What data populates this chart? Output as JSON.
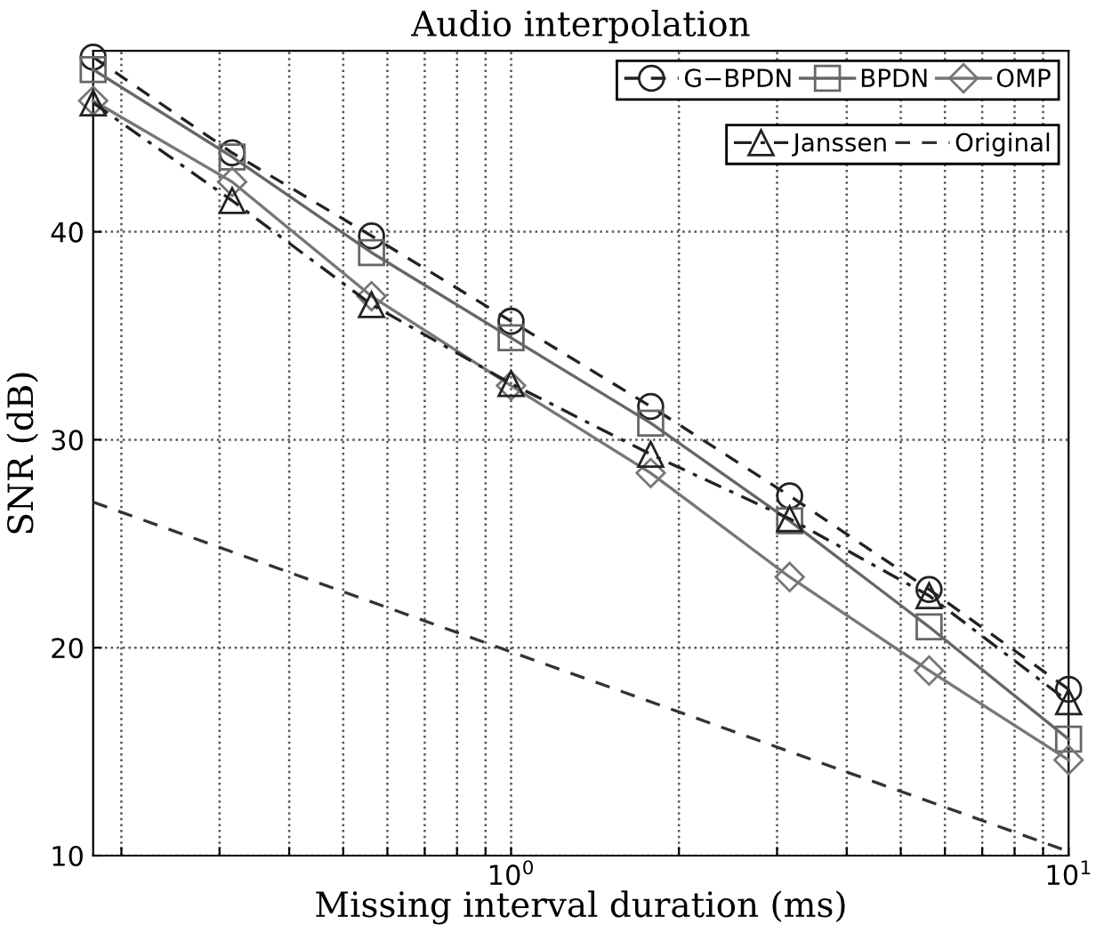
{
  "chart_data": {
    "type": "line",
    "title": "Audio interpolation",
    "xlabel": "Missing interval duration (ms)",
    "ylabel": "SNR (dB)",
    "x": [
      0.178,
      0.316,
      0.562,
      1,
      1.78,
      3.16,
      5.62,
      10
    ],
    "series": [
      {
        "name": "G−BPDN",
        "color": "#222222",
        "marker": "circle",
        "line_style": "dashed",
        "values": [
          48.4,
          43.8,
          39.8,
          35.7,
          31.6,
          27.3,
          22.8,
          18.0
        ]
      },
      {
        "name": "BPDN",
        "color": "#666666",
        "marker": "square",
        "line_style": "solid",
        "values": [
          47.8,
          43.6,
          39.0,
          34.9,
          30.8,
          26.1,
          21.0,
          15.6
        ]
      },
      {
        "name": "OMP",
        "color": "#777777",
        "marker": "diamond",
        "line_style": "solid",
        "values": [
          46.3,
          42.4,
          36.9,
          32.6,
          28.4,
          23.4,
          18.9,
          14.6
        ]
      },
      {
        "name": "Janssen",
        "color": "#222222",
        "marker": "triangle",
        "line_style": "dashdot",
        "values": [
          46.2,
          41.5,
          36.5,
          32.7,
          29.3,
          26.2,
          22.5,
          17.4
        ]
      },
      {
        "name": "Original",
        "color": "#333333",
        "marker": "none",
        "line_style": "dashed",
        "x": [
          0.178,
          1,
          10
        ],
        "values": [
          27.0,
          19.8,
          10.2
        ]
      }
    ],
    "log": "x",
    "xlim": [
      0.178,
      10
    ],
    "ylim": [
      10,
      48.7
    ],
    "xticks": [
      {
        "value": 0.2,
        "label": null
      },
      {
        "value": 0.3,
        "label": null
      },
      {
        "value": 0.4,
        "label": null
      },
      {
        "value": 0.5,
        "label": null
      },
      {
        "value": 0.6,
        "label": null
      },
      {
        "value": 0.7,
        "label": null
      },
      {
        "value": 0.8,
        "label": null
      },
      {
        "value": 0.9,
        "label": null
      },
      {
        "value": 1,
        "label": "10$^{0}$"
      },
      {
        "value": 2,
        "label": null
      },
      {
        "value": 3,
        "label": null
      },
      {
        "value": 4,
        "label": null
      },
      {
        "value": 5,
        "label": null
      },
      {
        "value": 6,
        "label": null
      },
      {
        "value": 7,
        "label": null
      },
      {
        "value": 8,
        "label": null
      },
      {
        "value": 9,
        "label": null
      },
      {
        "value": 10,
        "label": "10$^{1}$"
      }
    ],
    "yticks": [
      10,
      20,
      30,
      40
    ],
    "grid": true,
    "legend": "top right"
  }
}
